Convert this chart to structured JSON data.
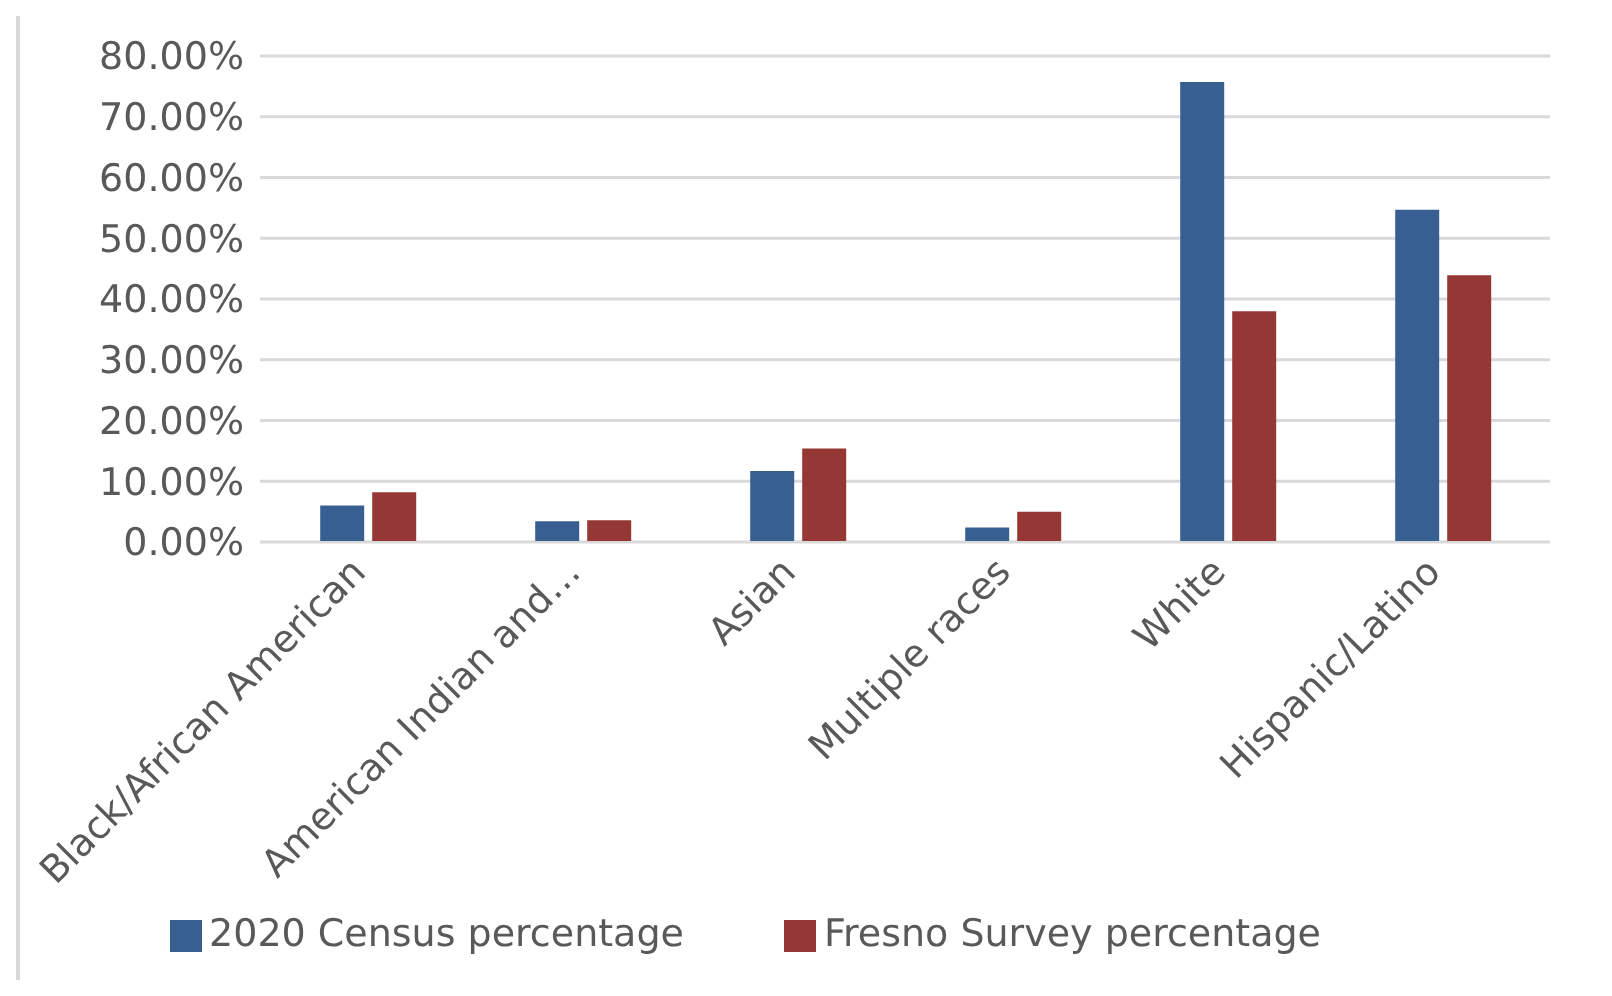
{
  "chart_data": {
    "type": "bar",
    "categories": [
      "Black/African American",
      "American Indian and…",
      "Asian",
      "Multiple races",
      "White",
      "Hispanic/Latino"
    ],
    "series": [
      {
        "name": "2020 Census percentage",
        "color": "#375f91",
        "values": [
          6.0,
          3.4,
          11.7,
          2.4,
          75.7,
          54.7
        ]
      },
      {
        "name": "Fresno Survey percentage",
        "color": "#953735",
        "values": [
          8.2,
          3.6,
          15.4,
          5.0,
          38.0,
          43.9
        ]
      }
    ],
    "ylim": [
      0,
      80
    ],
    "yticks": [
      {
        "value": 0,
        "label": "0.00%"
      },
      {
        "value": 10,
        "label": "10.00%"
      },
      {
        "value": 20,
        "label": "20.00%"
      },
      {
        "value": 30,
        "label": "30.00%"
      },
      {
        "value": 40,
        "label": "40.00%"
      },
      {
        "value": 50,
        "label": "50.00%"
      },
      {
        "value": 60,
        "label": "60.00%"
      },
      {
        "value": 70,
        "label": "70.00%"
      },
      {
        "value": 80,
        "label": "80.00%"
      }
    ],
    "grid": "y",
    "legend": "bottom"
  }
}
